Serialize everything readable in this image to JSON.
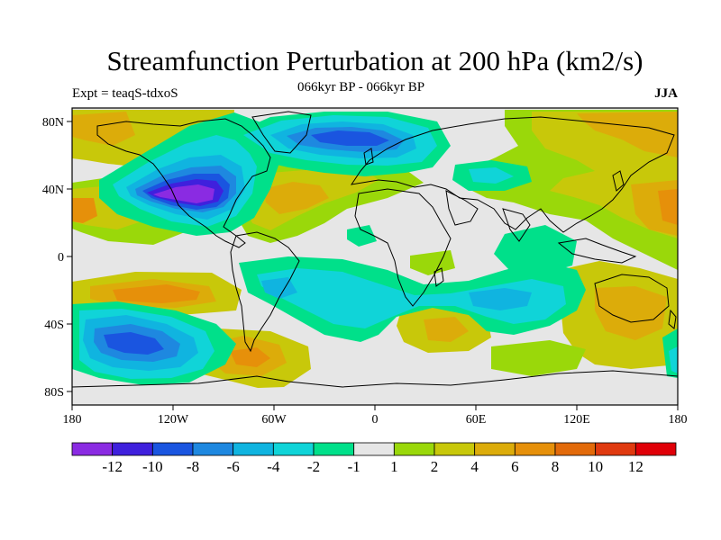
{
  "title": "Streamfunction Perturbation at 200 hPa (km2/s)",
  "subtitle": "066kyr BP - 066kyr BP",
  "left_label": "Expt = teaqS-tdxoS",
  "right_label": "JJA",
  "lat_ticks": [
    {
      "value": 80,
      "label": "80N"
    },
    {
      "value": 40,
      "label": "40N"
    },
    {
      "value": 0,
      "label": "0"
    },
    {
      "value": -40,
      "label": "40S"
    },
    {
      "value": -80,
      "label": "80S"
    }
  ],
  "lon_ticks": [
    {
      "value": -180,
      "label": "180"
    },
    {
      "value": -120,
      "label": "120W"
    },
    {
      "value": -60,
      "label": "60W"
    },
    {
      "value": 0,
      "label": "0"
    },
    {
      "value": 60,
      "label": "60E"
    },
    {
      "value": 120,
      "label": "120E"
    },
    {
      "value": 180,
      "label": "180"
    }
  ],
  "colorbar": {
    "colors": [
      "#8a2be2",
      "#3f20dd",
      "#1a55e0",
      "#1e88e0",
      "#10b4e0",
      "#10d4d8",
      "#00e08a",
      "#e6e6e6",
      "#9ad80a",
      "#c8c80a",
      "#dcac0a",
      "#e6900a",
      "#e26a0a",
      "#e03a10",
      "#e00008"
    ],
    "labels": [
      "-12",
      "-10",
      "-8",
      "-6",
      "-4",
      "-2",
      "-1",
      "1",
      "2",
      "4",
      "6",
      "8",
      "10",
      "12"
    ]
  }
}
